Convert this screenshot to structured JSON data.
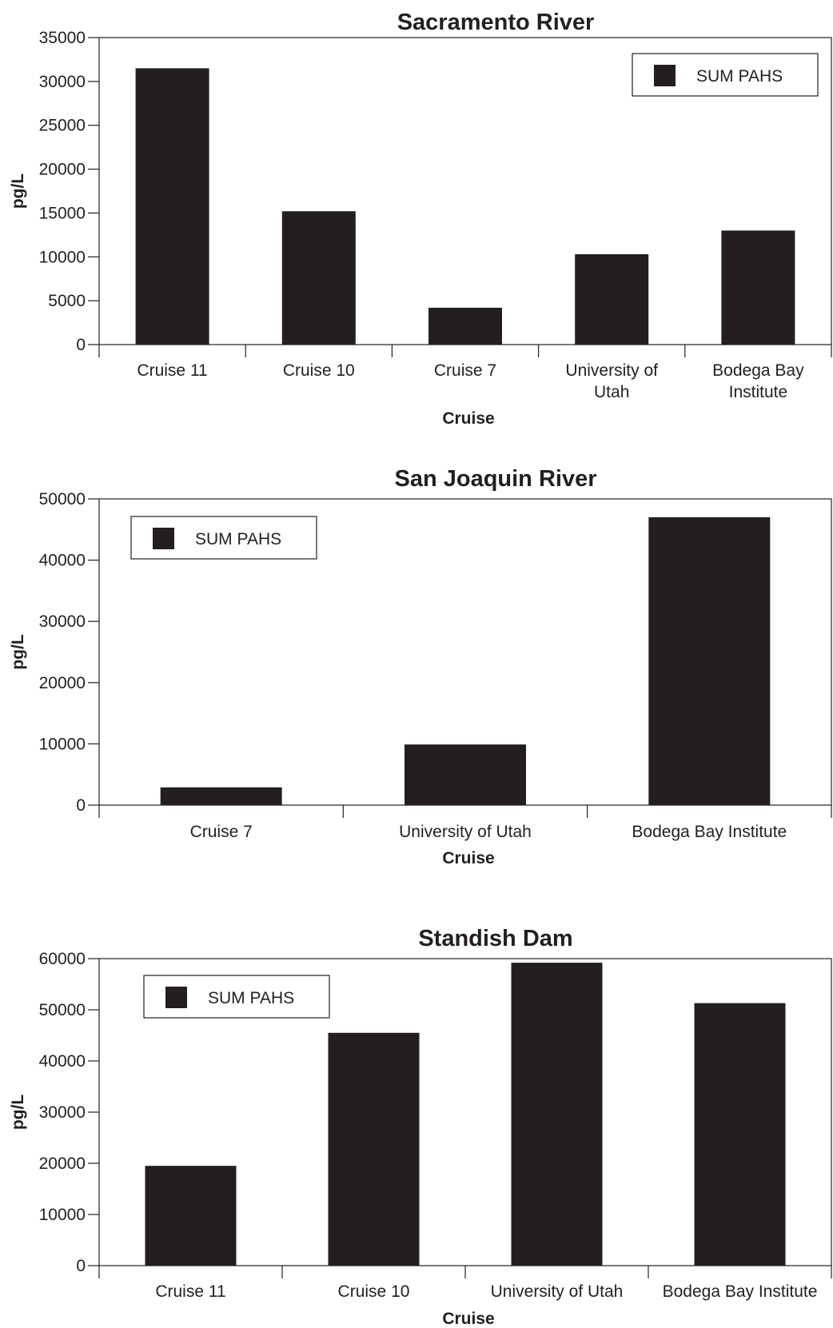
{
  "colors": {
    "bar": "#231f20",
    "axis": "#231f20",
    "background": "#ffffff"
  },
  "chart_data": [
    {
      "type": "bar",
      "title": "Sacramento River",
      "xlabel": "Cruise",
      "ylabel": "pg/L",
      "categories": [
        [
          "Cruise 11"
        ],
        [
          "Cruise 10"
        ],
        [
          "Cruise 7"
        ],
        [
          "University of",
          "Utah"
        ],
        [
          "Bodega Bay",
          "Institute"
        ]
      ],
      "series": [
        {
          "name": "SUM PAHS",
          "values": [
            31500,
            15200,
            4200,
            10300,
            13000
          ]
        }
      ],
      "ylim": [
        0,
        35000
      ],
      "yticks": [
        0,
        5000,
        10000,
        15000,
        20000,
        25000,
        30000,
        35000
      ],
      "grid": false,
      "legend_position": "top-right"
    },
    {
      "type": "bar",
      "title": "San Joaquin River",
      "xlabel": "Cruise",
      "ylabel": "pg/L",
      "categories": [
        [
          "Cruise 7"
        ],
        [
          "University of Utah"
        ],
        [
          "Bodega Bay Institute"
        ]
      ],
      "series": [
        {
          "name": "SUM PAHS",
          "values": [
            2900,
            9900,
            47000
          ]
        }
      ],
      "ylim": [
        0,
        50000
      ],
      "yticks": [
        0,
        10000,
        20000,
        30000,
        40000,
        50000
      ],
      "grid": false,
      "legend_position": "top-left"
    },
    {
      "type": "bar",
      "title": "Standish Dam",
      "xlabel": "Cruise",
      "ylabel": "pg/L",
      "categories": [
        [
          "Cruise 11"
        ],
        [
          "Cruise 10"
        ],
        [
          "University of Utah"
        ],
        [
          "Bodega Bay Institute"
        ]
      ],
      "series": [
        {
          "name": "SUM PAHS",
          "values": [
            19500,
            45500,
            59200,
            51300
          ]
        }
      ],
      "ylim": [
        0,
        60000
      ],
      "yticks": [
        0,
        10000,
        20000,
        30000,
        40000,
        50000,
        60000
      ],
      "grid": false,
      "legend_position": "top-left"
    }
  ]
}
